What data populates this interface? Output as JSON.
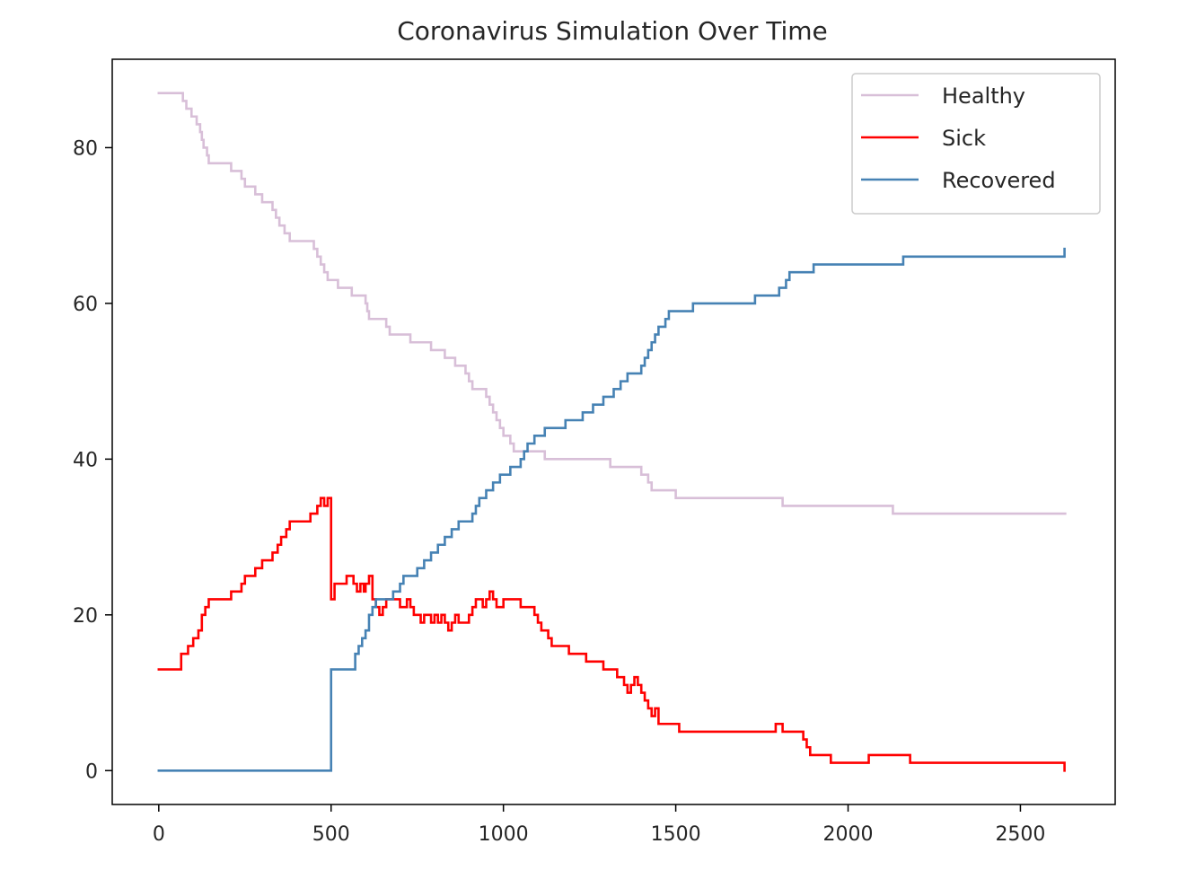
{
  "chart_data": {
    "type": "line",
    "title": "Coronavirus Simulation Over Time",
    "xlabel": "",
    "ylabel": "",
    "xlim": [
      -135,
      2775
    ],
    "ylim": [
      -4.35,
      91.35
    ],
    "xticks": [
      0,
      500,
      1000,
      1500,
      2000,
      2500
    ],
    "yticks": [
      0,
      20,
      40,
      60,
      80
    ],
    "grid": false,
    "legend_position": "top-right",
    "series": [
      {
        "name": "Healthy",
        "color": "#d8bfd8",
        "step": true,
        "points": [
          [
            0,
            87
          ],
          [
            60,
            87
          ],
          [
            70,
            86
          ],
          [
            80,
            85
          ],
          [
            95,
            84
          ],
          [
            110,
            83
          ],
          [
            120,
            82
          ],
          [
            125,
            81
          ],
          [
            130,
            80
          ],
          [
            140,
            79
          ],
          [
            145,
            78
          ],
          [
            200,
            78
          ],
          [
            210,
            77
          ],
          [
            230,
            77
          ],
          [
            240,
            76
          ],
          [
            250,
            75
          ],
          [
            270,
            75
          ],
          [
            280,
            74
          ],
          [
            300,
            73
          ],
          [
            320,
            73
          ],
          [
            330,
            72
          ],
          [
            340,
            71
          ],
          [
            350,
            70
          ],
          [
            365,
            69
          ],
          [
            380,
            68
          ],
          [
            440,
            68
          ],
          [
            450,
            67
          ],
          [
            460,
            66
          ],
          [
            470,
            65
          ],
          [
            480,
            64
          ],
          [
            490,
            63
          ],
          [
            510,
            63
          ],
          [
            520,
            62
          ],
          [
            550,
            62
          ],
          [
            560,
            61
          ],
          [
            590,
            61
          ],
          [
            600,
            60
          ],
          [
            605,
            59
          ],
          [
            610,
            58
          ],
          [
            650,
            58
          ],
          [
            660,
            57
          ],
          [
            670,
            56
          ],
          [
            720,
            56
          ],
          [
            730,
            55
          ],
          [
            780,
            55
          ],
          [
            790,
            54
          ],
          [
            820,
            54
          ],
          [
            830,
            53
          ],
          [
            850,
            53
          ],
          [
            860,
            52
          ],
          [
            880,
            52
          ],
          [
            890,
            51
          ],
          [
            900,
            50
          ],
          [
            910,
            49
          ],
          [
            940,
            49
          ],
          [
            950,
            48
          ],
          [
            960,
            47
          ],
          [
            970,
            46
          ],
          [
            980,
            45
          ],
          [
            990,
            44
          ],
          [
            1000,
            43
          ],
          [
            1020,
            42
          ],
          [
            1030,
            41
          ],
          [
            1110,
            41
          ],
          [
            1120,
            40
          ],
          [
            1300,
            40
          ],
          [
            1310,
            39
          ],
          [
            1390,
            39
          ],
          [
            1400,
            38
          ],
          [
            1420,
            37
          ],
          [
            1430,
            36
          ],
          [
            1490,
            36
          ],
          [
            1500,
            35
          ],
          [
            1800,
            35
          ],
          [
            1810,
            34
          ],
          [
            2120,
            34
          ],
          [
            2130,
            33
          ],
          [
            2630,
            33
          ]
        ]
      },
      {
        "name": "Sick",
        "color": "#ff0000",
        "step": true,
        "points": [
          [
            0,
            13
          ],
          [
            60,
            13
          ],
          [
            65,
            15
          ],
          [
            85,
            16
          ],
          [
            100,
            17
          ],
          [
            115,
            18
          ],
          [
            125,
            20
          ],
          [
            135,
            21
          ],
          [
            145,
            22
          ],
          [
            200,
            22
          ],
          [
            210,
            23
          ],
          [
            230,
            23
          ],
          [
            240,
            24
          ],
          [
            250,
            25
          ],
          [
            270,
            25
          ],
          [
            280,
            26
          ],
          [
            300,
            27
          ],
          [
            320,
            27
          ],
          [
            330,
            28
          ],
          [
            345,
            29
          ],
          [
            355,
            30
          ],
          [
            370,
            31
          ],
          [
            380,
            32
          ],
          [
            430,
            32
          ],
          [
            440,
            33
          ],
          [
            460,
            34
          ],
          [
            470,
            35
          ],
          [
            480,
            34
          ],
          [
            490,
            35
          ],
          [
            495,
            35
          ],
          [
            500,
            22
          ],
          [
            510,
            24
          ],
          [
            540,
            24
          ],
          [
            545,
            25
          ],
          [
            560,
            25
          ],
          [
            565,
            24
          ],
          [
            575,
            23
          ],
          [
            585,
            24
          ],
          [
            595,
            23
          ],
          [
            600,
            24
          ],
          [
            610,
            25
          ],
          [
            620,
            22
          ],
          [
            630,
            21
          ],
          [
            640,
            20
          ],
          [
            650,
            21
          ],
          [
            660,
            22
          ],
          [
            700,
            21
          ],
          [
            720,
            22
          ],
          [
            730,
            21
          ],
          [
            740,
            20
          ],
          [
            760,
            19
          ],
          [
            770,
            20
          ],
          [
            790,
            19
          ],
          [
            800,
            20
          ],
          [
            810,
            19
          ],
          [
            820,
            20
          ],
          [
            830,
            19
          ],
          [
            840,
            18
          ],
          [
            850,
            19
          ],
          [
            860,
            20
          ],
          [
            870,
            19
          ],
          [
            890,
            19
          ],
          [
            900,
            20
          ],
          [
            910,
            21
          ],
          [
            920,
            22
          ],
          [
            940,
            21
          ],
          [
            950,
            22
          ],
          [
            960,
            23
          ],
          [
            970,
            22
          ],
          [
            980,
            21
          ],
          [
            1000,
            22
          ],
          [
            1040,
            22
          ],
          [
            1050,
            21
          ],
          [
            1080,
            21
          ],
          [
            1090,
            20
          ],
          [
            1100,
            19
          ],
          [
            1110,
            18
          ],
          [
            1130,
            17
          ],
          [
            1140,
            16
          ],
          [
            1180,
            16
          ],
          [
            1190,
            15
          ],
          [
            1230,
            15
          ],
          [
            1240,
            14
          ],
          [
            1280,
            14
          ],
          [
            1290,
            13
          ],
          [
            1320,
            13
          ],
          [
            1330,
            12
          ],
          [
            1350,
            11
          ],
          [
            1360,
            10
          ],
          [
            1370,
            11
          ],
          [
            1380,
            12
          ],
          [
            1390,
            11
          ],
          [
            1400,
            10
          ],
          [
            1410,
            9
          ],
          [
            1420,
            8
          ],
          [
            1430,
            7
          ],
          [
            1440,
            8
          ],
          [
            1450,
            6
          ],
          [
            1500,
            6
          ],
          [
            1510,
            5
          ],
          [
            1780,
            5
          ],
          [
            1790,
            6
          ],
          [
            1810,
            5
          ],
          [
            1860,
            5
          ],
          [
            1870,
            4
          ],
          [
            1880,
            3
          ],
          [
            1890,
            2
          ],
          [
            1940,
            2
          ],
          [
            1950,
            1
          ],
          [
            2050,
            1
          ],
          [
            2060,
            2
          ],
          [
            2170,
            2
          ],
          [
            2180,
            1
          ],
          [
            2625,
            1
          ],
          [
            2628,
            0
          ]
        ]
      },
      {
        "name": "Recovered",
        "color": "#4682b4",
        "step": true,
        "points": [
          [
            0,
            0
          ],
          [
            495,
            0
          ],
          [
            500,
            13
          ],
          [
            560,
            13
          ],
          [
            570,
            15
          ],
          [
            580,
            16
          ],
          [
            590,
            17
          ],
          [
            600,
            18
          ],
          [
            610,
            20
          ],
          [
            620,
            21
          ],
          [
            630,
            22
          ],
          [
            670,
            22
          ],
          [
            680,
            23
          ],
          [
            700,
            24
          ],
          [
            710,
            25
          ],
          [
            740,
            25
          ],
          [
            750,
            26
          ],
          [
            770,
            27
          ],
          [
            790,
            28
          ],
          [
            810,
            29
          ],
          [
            830,
            30
          ],
          [
            850,
            31
          ],
          [
            870,
            32
          ],
          [
            900,
            32
          ],
          [
            910,
            33
          ],
          [
            920,
            34
          ],
          [
            930,
            35
          ],
          [
            950,
            36
          ],
          [
            970,
            37
          ],
          [
            990,
            38
          ],
          [
            1020,
            39
          ],
          [
            1050,
            40
          ],
          [
            1060,
            41
          ],
          [
            1070,
            42
          ],
          [
            1090,
            43
          ],
          [
            1120,
            44
          ],
          [
            1170,
            44
          ],
          [
            1180,
            45
          ],
          [
            1220,
            45
          ],
          [
            1230,
            46
          ],
          [
            1250,
            46
          ],
          [
            1260,
            47
          ],
          [
            1290,
            48
          ],
          [
            1320,
            49
          ],
          [
            1340,
            50
          ],
          [
            1360,
            51
          ],
          [
            1390,
            51
          ],
          [
            1400,
            52
          ],
          [
            1410,
            53
          ],
          [
            1420,
            54
          ],
          [
            1430,
            55
          ],
          [
            1440,
            56
          ],
          [
            1450,
            57
          ],
          [
            1470,
            58
          ],
          [
            1480,
            59
          ],
          [
            1540,
            59
          ],
          [
            1550,
            60
          ],
          [
            1720,
            60
          ],
          [
            1730,
            61
          ],
          [
            1790,
            61
          ],
          [
            1800,
            62
          ],
          [
            1820,
            63
          ],
          [
            1830,
            64
          ],
          [
            1890,
            64
          ],
          [
            1900,
            65
          ],
          [
            2150,
            65
          ],
          [
            2160,
            66
          ],
          [
            2625,
            66
          ],
          [
            2628,
            67
          ]
        ]
      }
    ]
  }
}
